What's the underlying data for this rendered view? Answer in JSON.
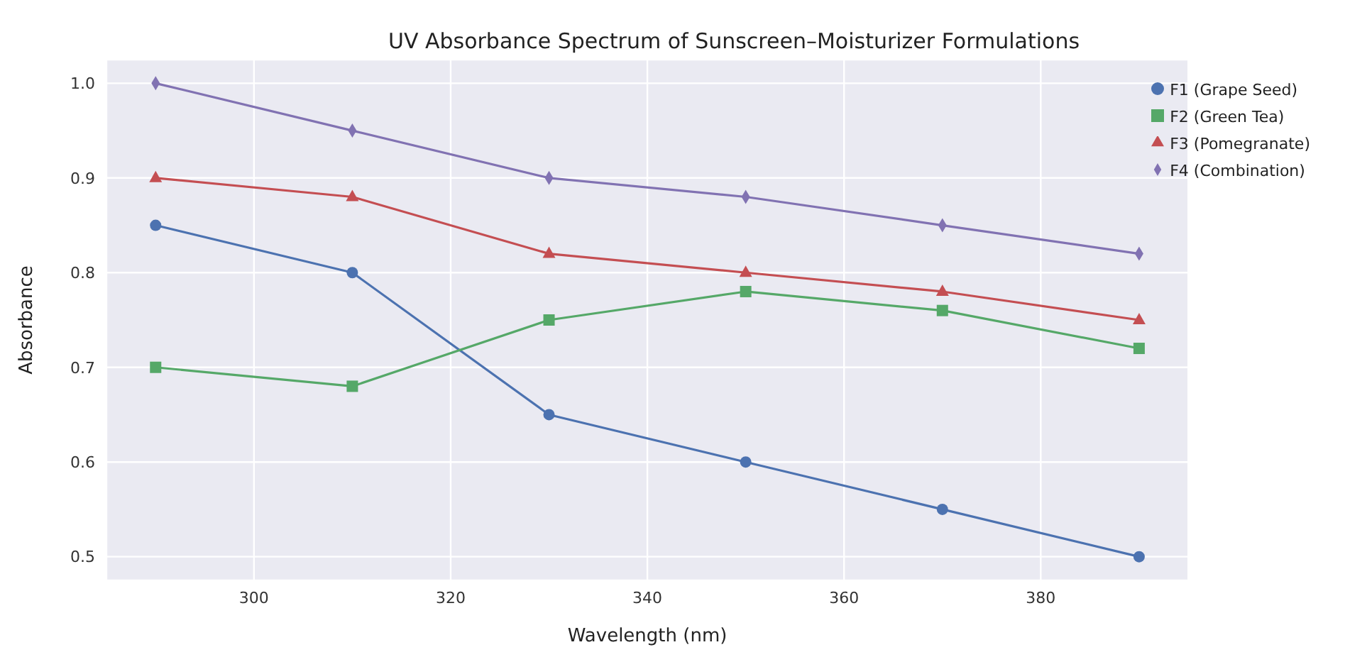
{
  "chart_data": {
    "type": "line",
    "title": "UV Absorbance Spectrum of Sunscreen–Moisturizer Formulations",
    "xlabel": "Wavelength (nm)",
    "ylabel": "Absorbance",
    "x": [
      290,
      310,
      330,
      350,
      370,
      390
    ],
    "series": [
      {
        "name": "F1 (Grape Seed)",
        "color": "#4c72b0",
        "marker": "circle",
        "values": [
          0.85,
          0.8,
          0.65,
          0.6,
          0.55,
          0.5
        ]
      },
      {
        "name": "F2 (Green Tea)",
        "color": "#55a868",
        "marker": "square",
        "values": [
          0.7,
          0.68,
          0.75,
          0.78,
          0.76,
          0.72
        ]
      },
      {
        "name": "F3 (Pomegranate)",
        "color": "#c44e52",
        "marker": "triangle",
        "values": [
          0.9,
          0.88,
          0.82,
          0.8,
          0.78,
          0.75
        ]
      },
      {
        "name": "F4 (Combination)",
        "color": "#8172b2",
        "marker": "diamond",
        "values": [
          1.0,
          0.95,
          0.9,
          0.88,
          0.85,
          0.82
        ]
      }
    ],
    "xlim": [
      285,
      395
    ],
    "xticks": [
      300,
      320,
      340,
      360,
      380
    ],
    "ylim": [
      0.475,
      1.025
    ],
    "yticks": [
      0.5,
      0.6,
      0.7,
      0.8,
      0.9,
      {
        "value": 1,
        "label": "1.0"
      }
    ],
    "grid": true,
    "legend": "top right",
    "line_style": "solid"
  }
}
